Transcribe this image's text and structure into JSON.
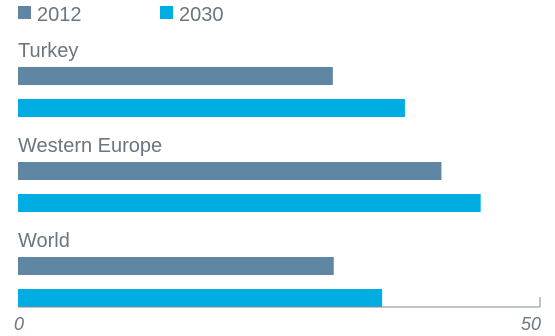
{
  "chart_data": {
    "type": "bar",
    "orientation": "horizontal",
    "title": "",
    "xlabel": "",
    "ylabel": "",
    "categories": [
      "Turkey",
      "Western Europe",
      "World"
    ],
    "series": [
      {
        "name": "2012",
        "color": "#5f87a3",
        "values": [
          34.5,
          46.4,
          34.6
        ]
      },
      {
        "name": "2030",
        "color": "#00ade3",
        "values": [
          42.4,
          50.7,
          39.9
        ]
      }
    ],
    "xlim": [
      0,
      57.2
    ],
    "xticks": [
      0,
      50
    ],
    "tick_labels": [
      "0",
      "50"
    ],
    "grid": false,
    "legend_position": "top-left"
  }
}
